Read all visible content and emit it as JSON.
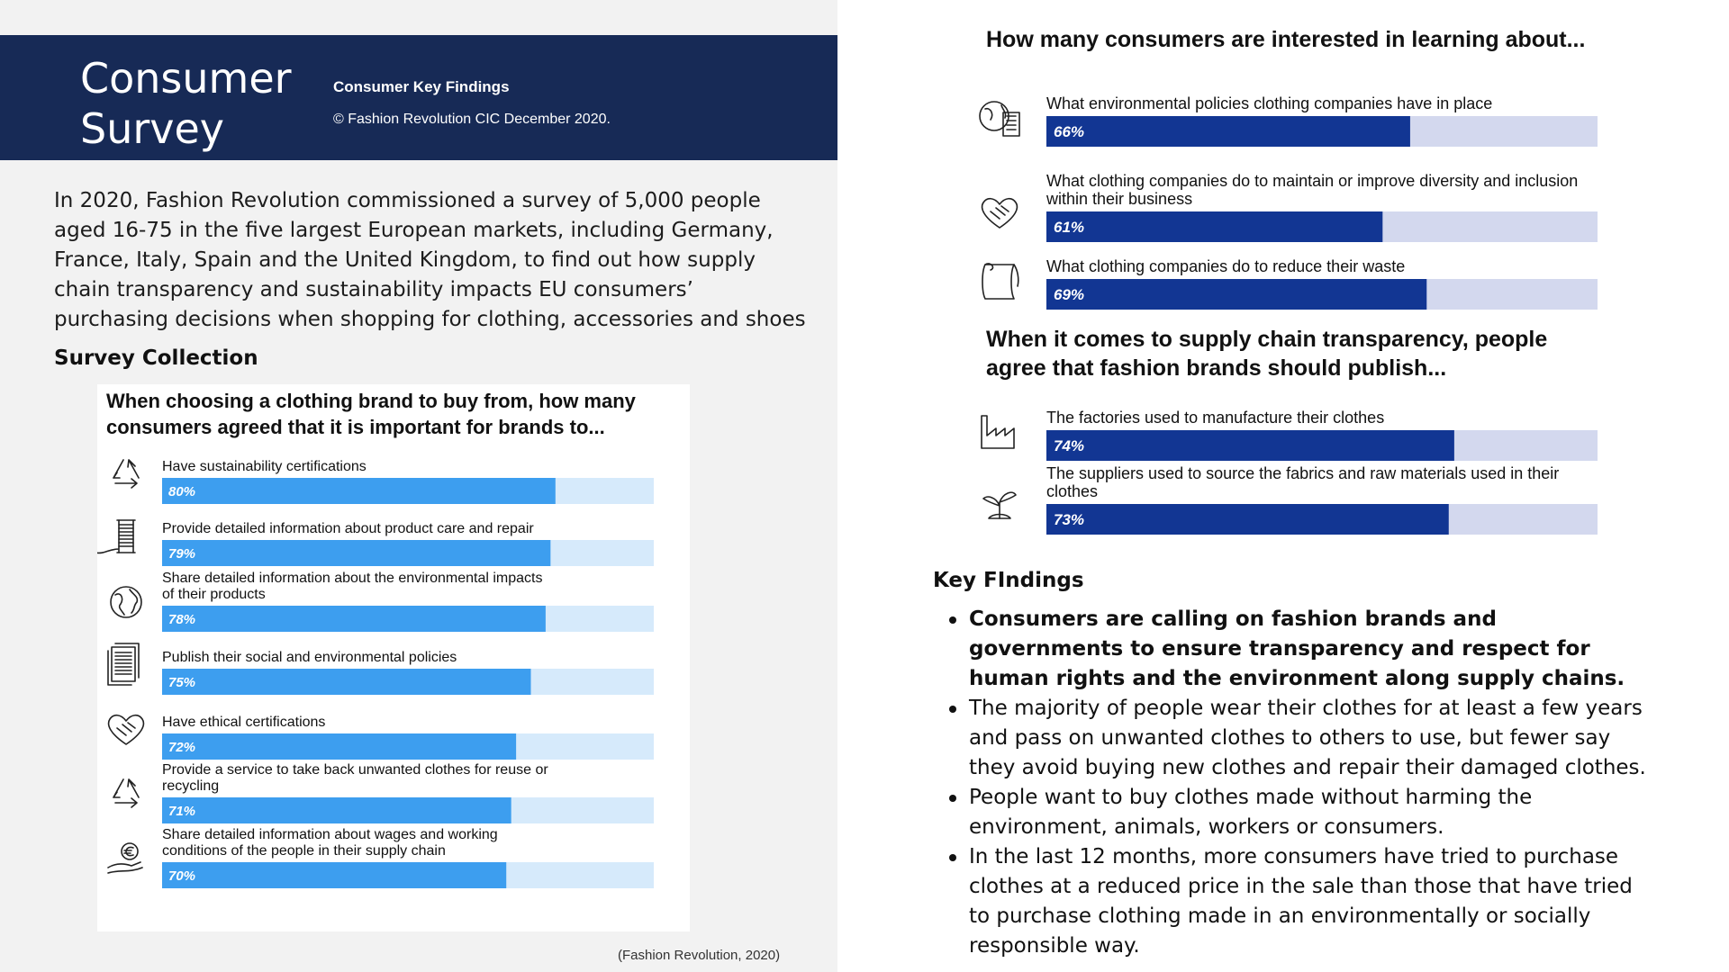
{
  "header": {
    "title": "Consumer Survey",
    "subtitle": "Consumer Key Findings",
    "copyright": "© Fashion Revolution CIC December 2020."
  },
  "intro": "In 2020, Fashion Revolution commissioned a survey of 5,000 people aged 16-75 in the five largest European markets, including Germany, France, Italy, Spain and the United Kingdom, to find out how supply chain transparency and sustainability impacts EU consumers’ purchasing decisions when shopping for clothing, accessories and shoes",
  "survey_heading": "Survey Collection",
  "source_note": "(Fashion Revolution, 2020)",
  "colors": {
    "header_bg": "#172a56",
    "left_bar_fill": "#3d9eef",
    "left_bar_track": "#d6eafb",
    "right_bar_fill": "#123693",
    "right_bar_track": "#d3d8ee"
  },
  "chart_data": [
    {
      "type": "bar",
      "orientation": "horizontal",
      "title": "When choosing a clothing brand to buy from, how many consumers agreed that it is important for brands to...",
      "categories": [
        "Have sustainability certifications",
        "Provide detailed information about product care and repair",
        "Share detailed information about the environmental impacts of their products",
        "Publish their social and environmental policies",
        "Have ethical certifications",
        "Provide a service to take back unwanted clothes for reuse or recycling",
        "Share detailed information about wages and working conditions of the people in their supply chain"
      ],
      "values": [
        80,
        79,
        78,
        75,
        72,
        71,
        70
      ],
      "value_labels": [
        "80%",
        "79%",
        "78%",
        "75%",
        "72%",
        "71%",
        "70%"
      ],
      "icons": [
        "recycle-icon",
        "thread-spool-icon",
        "globe-icon",
        "documents-icon",
        "handshake-heart-icon",
        "recycle-icon",
        "euro-hand-icon"
      ],
      "xlim": [
        0,
        100
      ]
    },
    {
      "type": "bar",
      "orientation": "horizontal",
      "title": "How many consumers are interested in learning about...",
      "categories": [
        "What environmental policies clothing companies have in place",
        "What clothing companies do to maintain or improve diversity and inclusion within their business",
        "What clothing companies do to reduce their waste"
      ],
      "values": [
        66,
        61,
        69
      ],
      "value_labels": [
        "66%",
        "61%",
        "69%"
      ],
      "icons": [
        "globe-documents-icon",
        "handshake-heart-icon",
        "fabric-roll-icon"
      ],
      "xlim": [
        0,
        100
      ]
    },
    {
      "type": "bar",
      "orientation": "horizontal",
      "title": "When it comes to supply chain transparency, people agree that fashion brands should publish...",
      "categories": [
        "The factories used to manufacture their clothes",
        "The suppliers used to source the fabrics and raw materials used in their clothes"
      ],
      "values": [
        74,
        73
      ],
      "value_labels": [
        "74%",
        "73%"
      ],
      "icons": [
        "factory-icon",
        "seedling-icon"
      ],
      "xlim": [
        0,
        100
      ]
    }
  ],
  "key_findings": {
    "heading": "Key FIndings",
    "items": [
      "Consumers are calling on fashion brands and governments to ensure transparency and respect for human rights and the environment along supply chains.",
      "The majority of people wear their clothes for at least a few years and pass on unwanted clothes to others to use, but fewer say they avoid buying new clothes and repair their damaged clothes.",
      "People want to buy clothes made without harming the environment, animals, workers or consumers.",
      "In the last 12 months, more consumers have tried to purchase clothes at a reduced price in the sale than those that have tried to purchase clothing made in an environmentally or socially responsible way."
    ]
  }
}
